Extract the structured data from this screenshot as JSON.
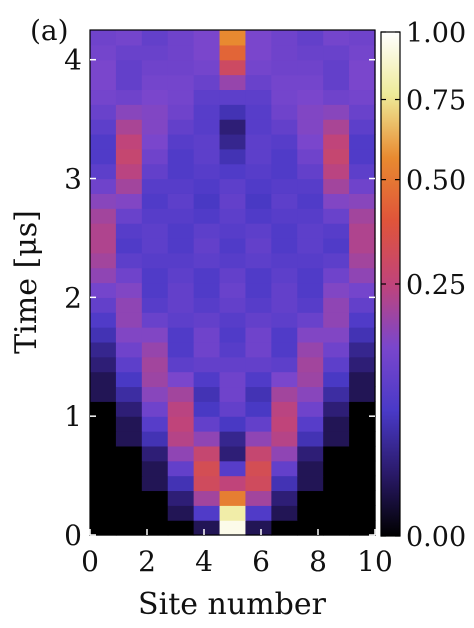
{
  "chart_data": {
    "type": "heatmap",
    "panel_label": "(a)",
    "xlabel": "Site number",
    "ylabel": "Time [μs]",
    "x_ticks": [
      0,
      2,
      4,
      6,
      8,
      10
    ],
    "y_ticks": [
      0,
      1,
      2,
      3,
      4
    ],
    "xlim": [
      0,
      10
    ],
    "ylim": [
      0,
      4.25
    ],
    "colorbar": {
      "ticks": [
        0.0,
        0.25,
        0.5,
        0.75,
        1.0
      ],
      "tick_labels": [
        "0.00",
        "0.25",
        "0.50",
        "0.75",
        "1.00"
      ],
      "scale": "power-law",
      "range": [
        0.0,
        1.0
      ],
      "colormap": [
        "#000000",
        "#2a1a6a",
        "#4a3ac8",
        "#7a46cc",
        "#c0447a",
        "#e0543a",
        "#e88a30",
        "#eeea98",
        "#ffffff"
      ]
    },
    "sites": [
      0,
      1,
      2,
      3,
      4,
      5,
      6,
      7,
      8,
      9,
      10
    ],
    "time_step": 0.125,
    "times": [
      0.0,
      0.125,
      0.25,
      0.375,
      0.5,
      0.625,
      0.75,
      0.875,
      1.0,
      1.125,
      1.25,
      1.375,
      1.5,
      1.625,
      1.75,
      1.875,
      2.0,
      2.125,
      2.25,
      2.375,
      2.5,
      2.625,
      2.75,
      2.875,
      3.0,
      3.125,
      3.25,
      3.375,
      3.5,
      3.625,
      3.75,
      3.875,
      4.0,
      4.125
    ],
    "values": [
      [
        0.0,
        0.0,
        0.0,
        0.0,
        0.01,
        0.95,
        0.01,
        0.0,
        0.0,
        0.0,
        0.0
      ],
      [
        0.0,
        0.0,
        0.0,
        0.01,
        0.07,
        0.8,
        0.07,
        0.01,
        0.0,
        0.0,
        0.0
      ],
      [
        0.0,
        0.0,
        0.0,
        0.02,
        0.2,
        0.52,
        0.2,
        0.02,
        0.0,
        0.0,
        0.0
      ],
      [
        0.0,
        0.0,
        0.01,
        0.05,
        0.31,
        0.25,
        0.31,
        0.05,
        0.01,
        0.0,
        0.0
      ],
      [
        0.0,
        0.0,
        0.01,
        0.1,
        0.33,
        0.08,
        0.33,
        0.1,
        0.01,
        0.0,
        0.0
      ],
      [
        0.0,
        0.0,
        0.02,
        0.17,
        0.27,
        0.02,
        0.27,
        0.17,
        0.02,
        0.0,
        0.0
      ],
      [
        0.0,
        0.01,
        0.05,
        0.23,
        0.17,
        0.03,
        0.17,
        0.23,
        0.05,
        0.01,
        0.0
      ],
      [
        0.0,
        0.01,
        0.08,
        0.25,
        0.1,
        0.06,
        0.1,
        0.25,
        0.08,
        0.01,
        0.0
      ],
      [
        0.0,
        0.02,
        0.12,
        0.24,
        0.06,
        0.1,
        0.06,
        0.24,
        0.12,
        0.02,
        0.0
      ],
      [
        0.01,
        0.04,
        0.16,
        0.2,
        0.05,
        0.12,
        0.05,
        0.2,
        0.16,
        0.04,
        0.01
      ],
      [
        0.01,
        0.06,
        0.19,
        0.14,
        0.07,
        0.12,
        0.07,
        0.14,
        0.19,
        0.06,
        0.01
      ],
      [
        0.02,
        0.09,
        0.2,
        0.09,
        0.1,
        0.1,
        0.1,
        0.09,
        0.2,
        0.09,
        0.02
      ],
      [
        0.03,
        0.12,
        0.18,
        0.07,
        0.12,
        0.08,
        0.12,
        0.07,
        0.18,
        0.12,
        0.03
      ],
      [
        0.05,
        0.15,
        0.15,
        0.07,
        0.12,
        0.07,
        0.12,
        0.07,
        0.15,
        0.15,
        0.05
      ],
      [
        0.07,
        0.17,
        0.11,
        0.09,
        0.1,
        0.08,
        0.1,
        0.09,
        0.11,
        0.17,
        0.07
      ],
      [
        0.1,
        0.17,
        0.08,
        0.1,
        0.08,
        0.1,
        0.08,
        0.1,
        0.08,
        0.17,
        0.1
      ],
      [
        0.13,
        0.15,
        0.07,
        0.1,
        0.07,
        0.11,
        0.07,
        0.1,
        0.07,
        0.15,
        0.13
      ],
      [
        0.17,
        0.12,
        0.07,
        0.09,
        0.07,
        0.1,
        0.07,
        0.09,
        0.07,
        0.12,
        0.17
      ],
      [
        0.2,
        0.09,
        0.08,
        0.08,
        0.09,
        0.08,
        0.09,
        0.08,
        0.08,
        0.09,
        0.2
      ],
      [
        0.22,
        0.07,
        0.09,
        0.07,
        0.1,
        0.07,
        0.1,
        0.07,
        0.09,
        0.07,
        0.22
      ],
      [
        0.22,
        0.08,
        0.09,
        0.07,
        0.09,
        0.08,
        0.09,
        0.07,
        0.09,
        0.08,
        0.22
      ],
      [
        0.2,
        0.11,
        0.08,
        0.08,
        0.07,
        0.09,
        0.07,
        0.08,
        0.08,
        0.11,
        0.2
      ],
      [
        0.16,
        0.15,
        0.07,
        0.09,
        0.06,
        0.1,
        0.06,
        0.09,
        0.07,
        0.15,
        0.16
      ],
      [
        0.12,
        0.2,
        0.08,
        0.08,
        0.07,
        0.09,
        0.07,
        0.08,
        0.08,
        0.2,
        0.12
      ],
      [
        0.09,
        0.24,
        0.1,
        0.07,
        0.08,
        0.07,
        0.08,
        0.07,
        0.1,
        0.24,
        0.09
      ],
      [
        0.07,
        0.27,
        0.12,
        0.07,
        0.09,
        0.05,
        0.09,
        0.07,
        0.12,
        0.27,
        0.07
      ],
      [
        0.07,
        0.25,
        0.14,
        0.08,
        0.09,
        0.03,
        0.09,
        0.08,
        0.14,
        0.25,
        0.07
      ],
      [
        0.09,
        0.21,
        0.15,
        0.1,
        0.08,
        0.02,
        0.08,
        0.1,
        0.15,
        0.21,
        0.09
      ],
      [
        0.11,
        0.16,
        0.15,
        0.12,
        0.08,
        0.05,
        0.08,
        0.12,
        0.15,
        0.16,
        0.11
      ],
      [
        0.13,
        0.12,
        0.14,
        0.13,
        0.09,
        0.09,
        0.09,
        0.13,
        0.14,
        0.12,
        0.13
      ],
      [
        0.14,
        0.1,
        0.13,
        0.13,
        0.11,
        0.18,
        0.11,
        0.13,
        0.13,
        0.1,
        0.14
      ],
      [
        0.14,
        0.1,
        0.12,
        0.12,
        0.13,
        0.3,
        0.13,
        0.12,
        0.12,
        0.1,
        0.14
      ],
      [
        0.13,
        0.11,
        0.11,
        0.12,
        0.14,
        0.44,
        0.14,
        0.12,
        0.11,
        0.11,
        0.13
      ],
      [
        0.12,
        0.13,
        0.1,
        0.12,
        0.14,
        0.56,
        0.14,
        0.12,
        0.1,
        0.13,
        0.12
      ]
    ]
  }
}
